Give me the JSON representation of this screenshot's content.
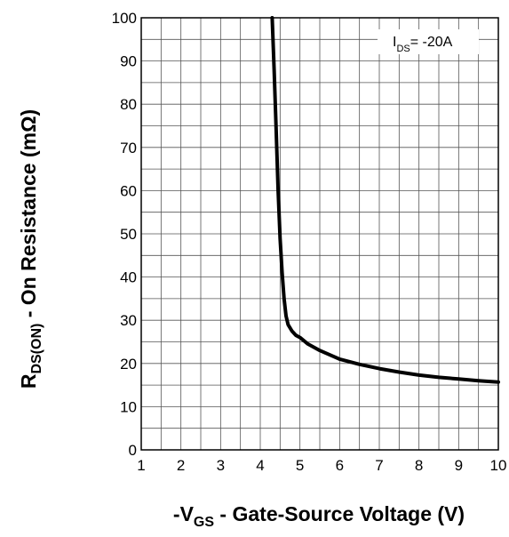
{
  "chart_data": {
    "type": "line",
    "title": "",
    "xlabel": {
      "prefix": "-V",
      "sub": "GS",
      "rest": " - Gate-Source Voltage (V)"
    },
    "ylabel": {
      "main": "R",
      "sub": "DS(ON)",
      "rest": " - On Resistance (mΩ)"
    },
    "xlim": [
      1,
      10
    ],
    "ylim": [
      0,
      100
    ],
    "x_ticks": [
      "1",
      "2",
      "3",
      "4",
      "5",
      "6",
      "7",
      "8",
      "9",
      "10"
    ],
    "y_ticks": [
      "0",
      "10",
      "20",
      "30",
      "40",
      "50",
      "60",
      "70",
      "80",
      "90",
      "100"
    ],
    "grid": true,
    "annotation": {
      "main": "I",
      "sub": "DS",
      "rest": "= -20A"
    },
    "series": [
      {
        "line_color": "#000000",
        "x": [
          4.3,
          4.35,
          4.4,
          4.45,
          4.5,
          4.55,
          4.6,
          4.65,
          4.7,
          4.8,
          4.9,
          5.0,
          5.2,
          5.5,
          6.0,
          6.5,
          7.0,
          7.5,
          8.0,
          8.5,
          9.0,
          9.5,
          10.0
        ],
        "y": [
          100,
          88,
          74,
          60,
          49,
          41,
          35,
          31,
          29,
          27.5,
          26.5,
          26,
          24.5,
          23,
          21,
          19.8,
          18.8,
          18,
          17.3,
          16.8,
          16.4,
          16.0,
          15.7
        ]
      }
    ]
  }
}
